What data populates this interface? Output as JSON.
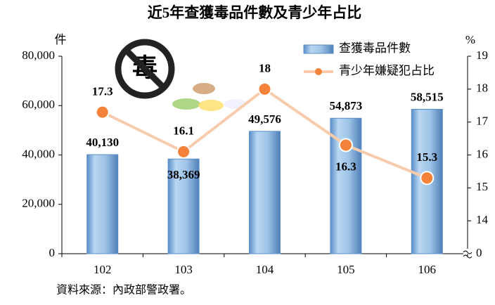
{
  "chart_data": {
    "type": "bar-line",
    "title": "近5年查獲毒品件數及青少年占比",
    "y_label": "件",
    "y2_label": "%",
    "categories": [
      "102",
      "103",
      "104",
      "105",
      "106"
    ],
    "series": [
      {
        "name": "查獲毒品件數",
        "type": "bar",
        "color": "#9dc3e6",
        "values": [
          40130,
          38369,
          49576,
          54873,
          58515
        ],
        "value_labels": [
          "40,130",
          "38,369",
          "49,576",
          "54,873",
          "58,515"
        ]
      },
      {
        "name": "青少年嫌疑犯占比",
        "type": "line",
        "axis": "y2",
        "color": "#f8cbad",
        "marker_color": "#f4823a",
        "values": [
          17.3,
          16.1,
          18.0,
          16.3,
          15.3
        ]
      }
    ],
    "ylim": [
      0,
      80000
    ],
    "yticks": [
      0,
      {
        "value": 20000,
        "label": "20,000"
      },
      {
        "value": 40000,
        "label": "40,000"
      },
      {
        "value": 60000,
        "label": "60,000"
      },
      {
        "value": 80000,
        "label": "80,000"
      }
    ],
    "y2lim": [
      0,
      19
    ],
    "y2_break": [
      0,
      13
    ],
    "y2ticks": [
      0,
      14,
      15,
      16,
      17,
      18,
      19
    ],
    "legend": "top-right",
    "source": "資料來源：內政部警政署。"
  }
}
